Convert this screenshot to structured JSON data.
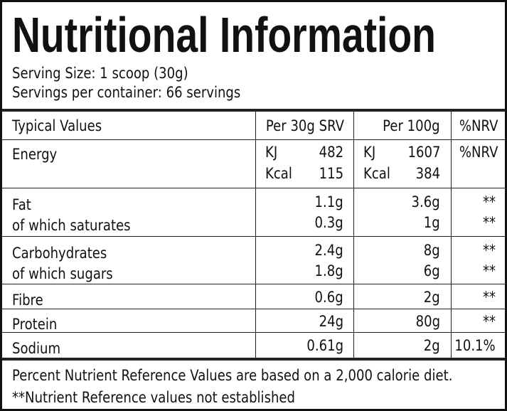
{
  "header": {
    "title": "Nutritional Information",
    "serving_size": "Serving Size: 1 scoop (30g)",
    "servings_per_container": "Servings per container: 66 servings"
  },
  "table": {
    "columns": [
      "Typical Values",
      "Per 30g SRV",
      "Per 100g",
      "%NRV"
    ],
    "energy": {
      "label": "Energy",
      "lines": [
        [
          "KJ",
          "482",
          "KJ",
          "1607"
        ],
        [
          "Kcal",
          "115",
          "Kcal",
          "384"
        ]
      ],
      "nrv": "%NRV"
    },
    "groups": [
      [
        [
          "Fat",
          "1.1g",
          "3.6g",
          "**"
        ],
        [
          "of which saturates",
          "0.3g",
          "1g",
          "**"
        ]
      ],
      [
        [
          "Carbohydrates",
          "2.4g",
          "8g",
          "**"
        ],
        [
          "of which sugars",
          "1.8g",
          "6g",
          "**"
        ]
      ],
      [
        [
          "Fibre",
          "0.6g",
          "2g",
          "**"
        ]
      ],
      [
        [
          "Protein",
          "24g",
          "80g",
          "**"
        ]
      ],
      [
        [
          "Sodium",
          "0.61g",
          "2g",
          "10.1%"
        ]
      ]
    ]
  },
  "footer": {
    "note": "Percent Nutrient Reference Values are based on a 2,000 calorie diet.",
    "footnote": "**Nutrient Reference values not established"
  }
}
